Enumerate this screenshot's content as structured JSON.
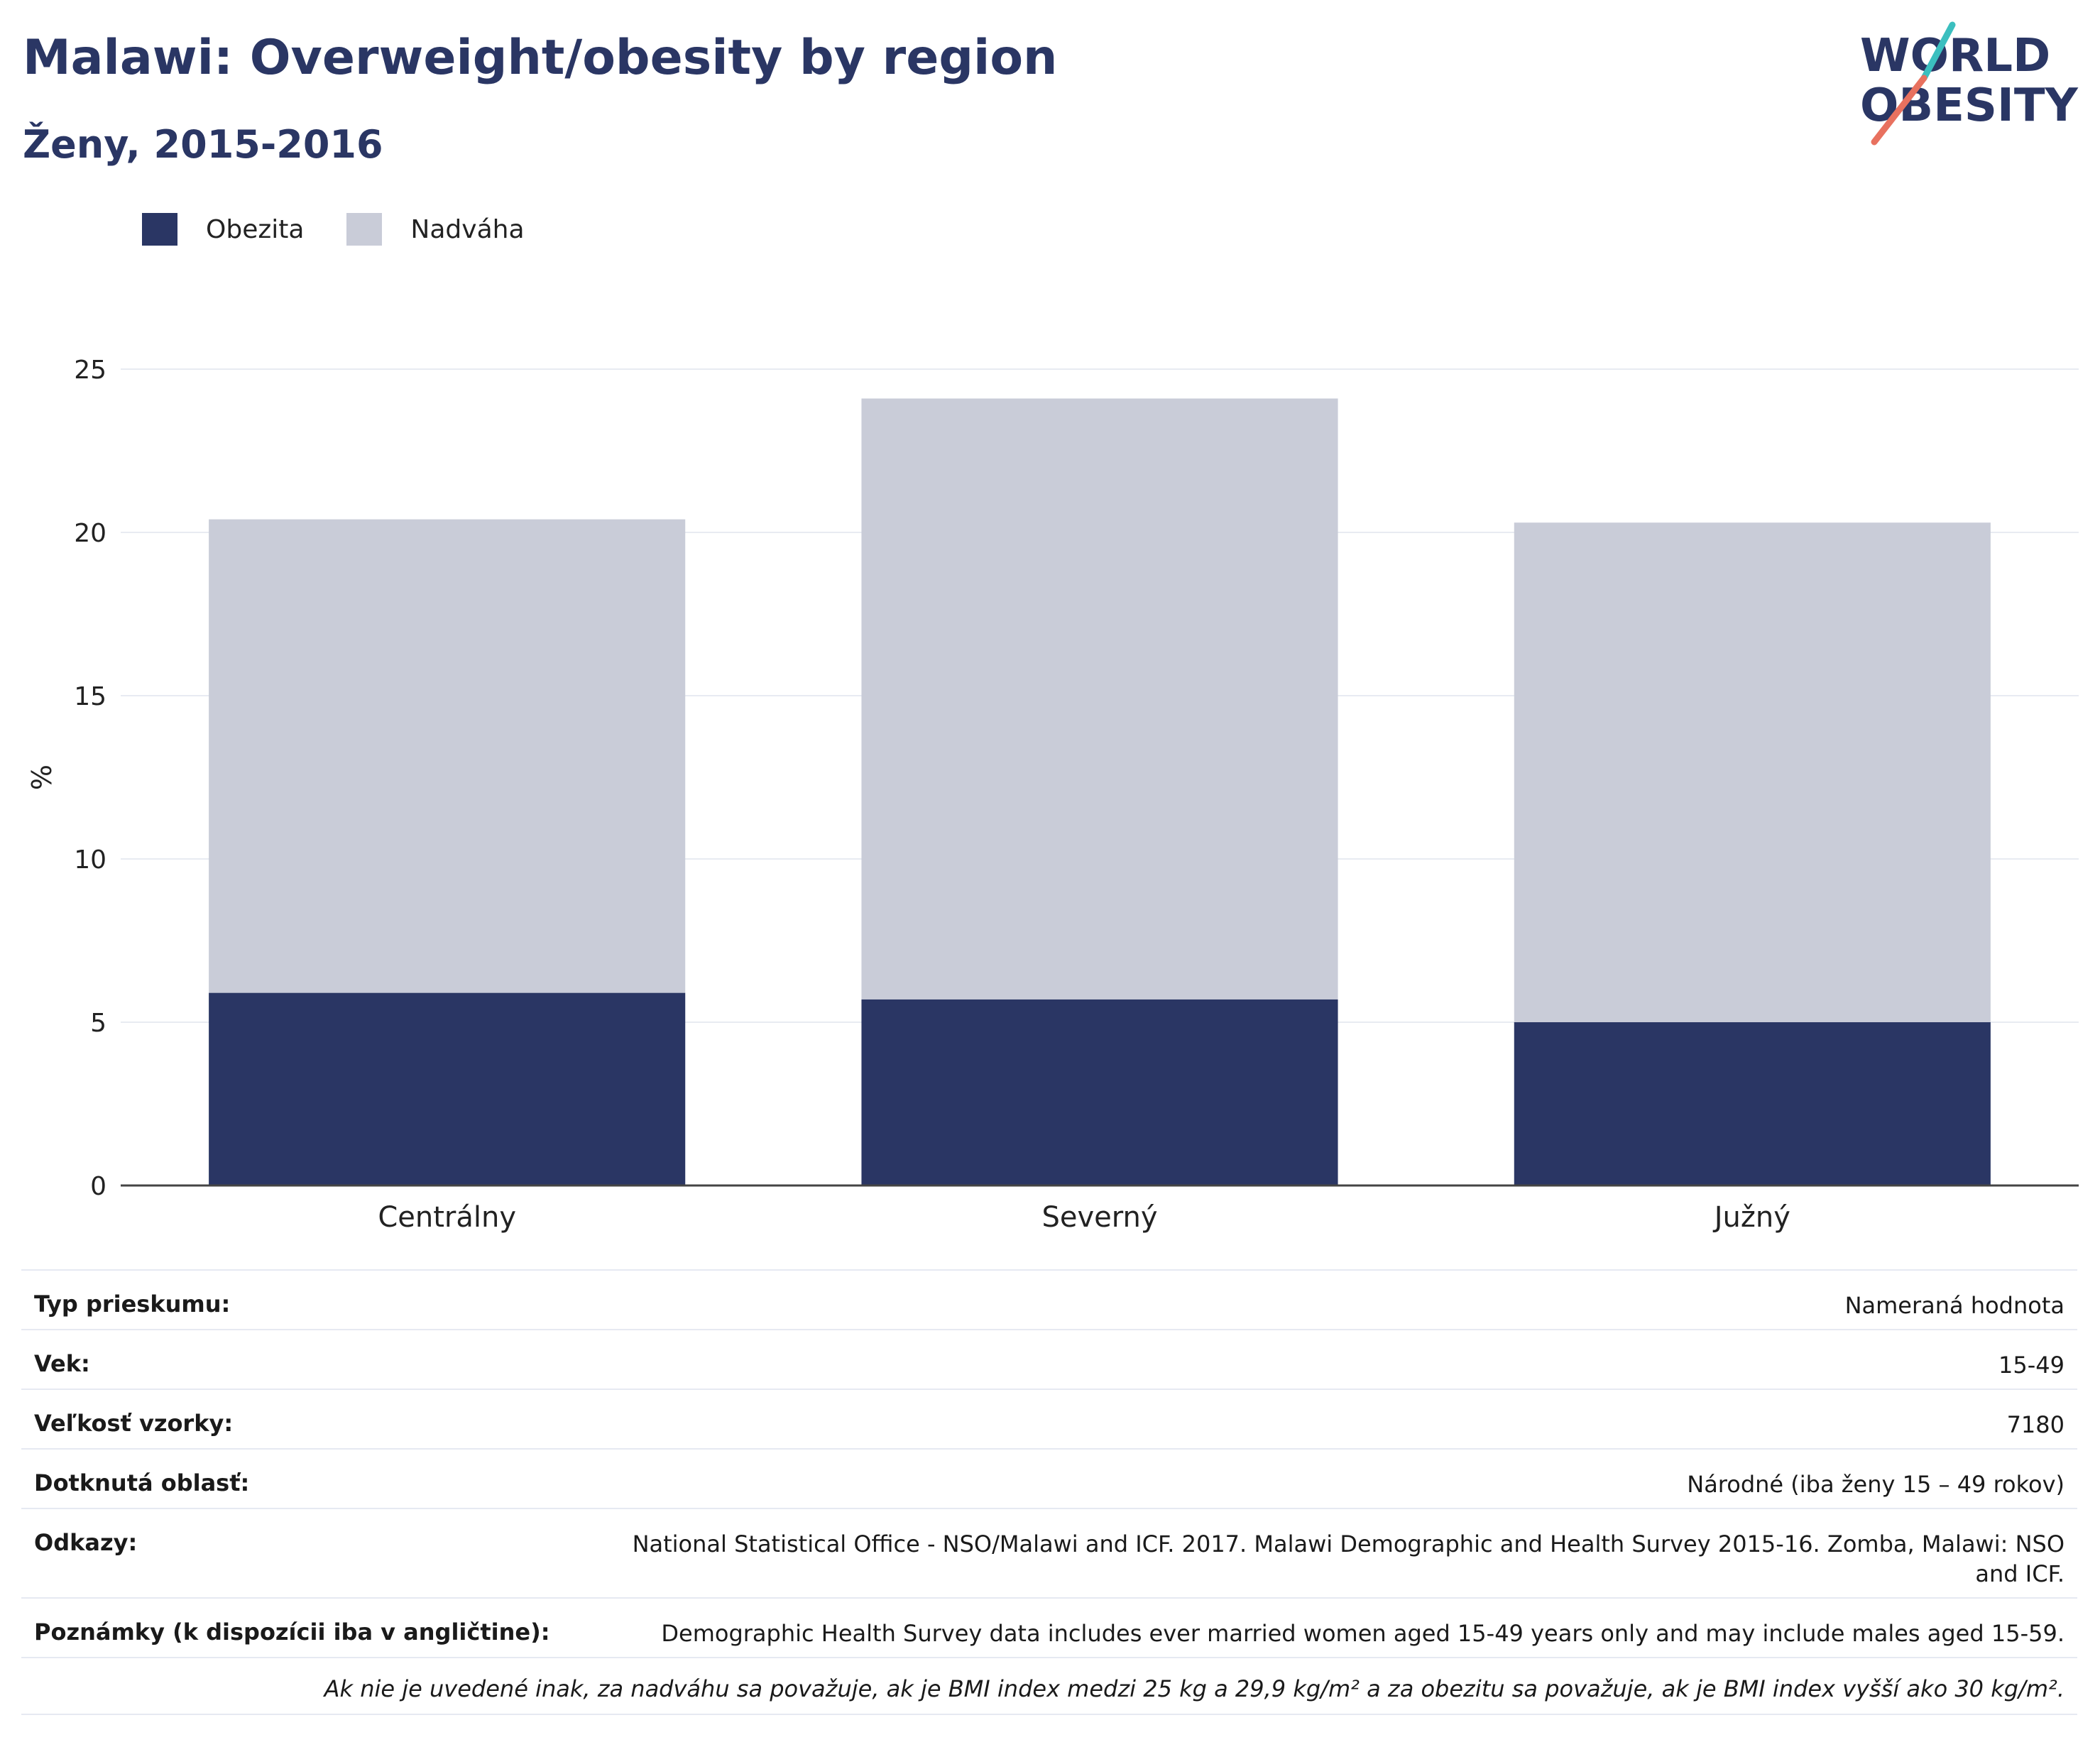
{
  "header": {
    "title": "Malawi: Overweight/obesity by region",
    "subtitle": "Ženy, 2015-2016"
  },
  "logo": {
    "line1": "WORLD",
    "line2": "OBESITY"
  },
  "colors": {
    "obesity": "#2a3664",
    "overweight": "#c9ccd8",
    "title": "#2a3664",
    "accent_teal": "#3bbfbf",
    "accent_coral": "#e8715f"
  },
  "chart_data": {
    "type": "bar",
    "stacked": true,
    "categories": [
      "Centrálny",
      "Severný",
      "Južný"
    ],
    "series": [
      {
        "name": "Obezita",
        "values": [
          5.9,
          5.7,
          5.0
        ]
      },
      {
        "name": "Nadváha",
        "values": [
          14.5,
          18.4,
          15.3
        ]
      }
    ],
    "ylabel": "%",
    "ylim": [
      0,
      25
    ],
    "yticks": [
      0,
      5,
      10,
      15,
      20,
      25
    ],
    "grid": true,
    "legend": "top-left"
  },
  "table": {
    "rows": [
      {
        "label": "Typ prieskumu:",
        "value": "Nameraná hodnota"
      },
      {
        "label": "Vek:",
        "value": "15-49"
      },
      {
        "label": "Veľkosť vzorky:",
        "value": "7180"
      },
      {
        "label": "Dotknutá oblasť:",
        "value": "Národné (iba ženy 15 – 49 rokov)"
      },
      {
        "label": "Odkazy:",
        "value": "National Statistical Office - NSO/Malawi and ICF. 2017. Malawi Demographic and Health Survey 2015-16. Zomba, Malawi: NSO and ICF."
      },
      {
        "label": "Poznámky (k dispozícii iba v angličtine):",
        "value": "Demographic Health Survey data includes ever married women aged 15-49 years only and may include males aged 15-59."
      }
    ],
    "note": "Ak nie je uvedené inak, za nadváhu sa považuje, ak je BMI index medzi 25 kg a 29,9 kg/m² a za obezitu sa považuje, ak je BMI index vyšší ako 30 kg/m²."
  }
}
